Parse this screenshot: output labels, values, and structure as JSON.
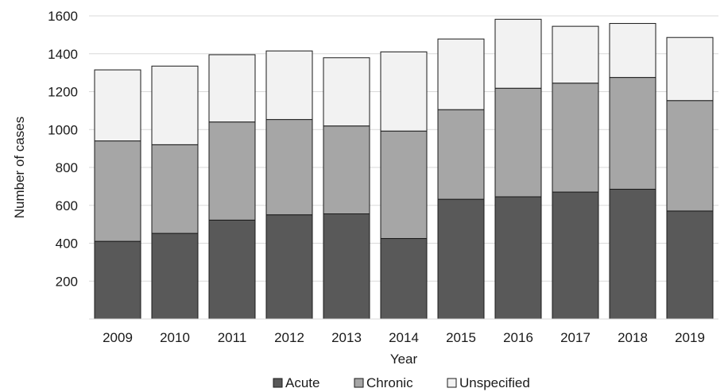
{
  "chart_data": {
    "type": "bar",
    "stacked": true,
    "categories": [
      "2009",
      "2010",
      "2011",
      "2012",
      "2013",
      "2014",
      "2015",
      "2016",
      "2017",
      "2018",
      "2019"
    ],
    "series": [
      {
        "name": "Acute",
        "color": "#595959",
        "values": [
          410,
          452,
          522,
          550,
          555,
          425,
          632,
          645,
          670,
          685,
          570
        ]
      },
      {
        "name": "Chronic",
        "color": "#a6a6a6",
        "values": [
          530,
          468,
          518,
          503,
          464,
          567,
          473,
          573,
          575,
          590,
          583
        ]
      },
      {
        "name": "Unspecified",
        "color": "#f2f2f2",
        "values": [
          375,
          415,
          355,
          362,
          360,
          418,
          373,
          364,
          300,
          285,
          333
        ]
      }
    ],
    "xlabel": "Year",
    "ylabel": "Number of cases",
    "ylim": [
      0,
      1600
    ],
    "yticks": [
      "200",
      "400",
      "600",
      "800",
      "1000",
      "1200",
      "1400",
      "1600"
    ],
    "grid": true,
    "legend_position": "bottom"
  }
}
